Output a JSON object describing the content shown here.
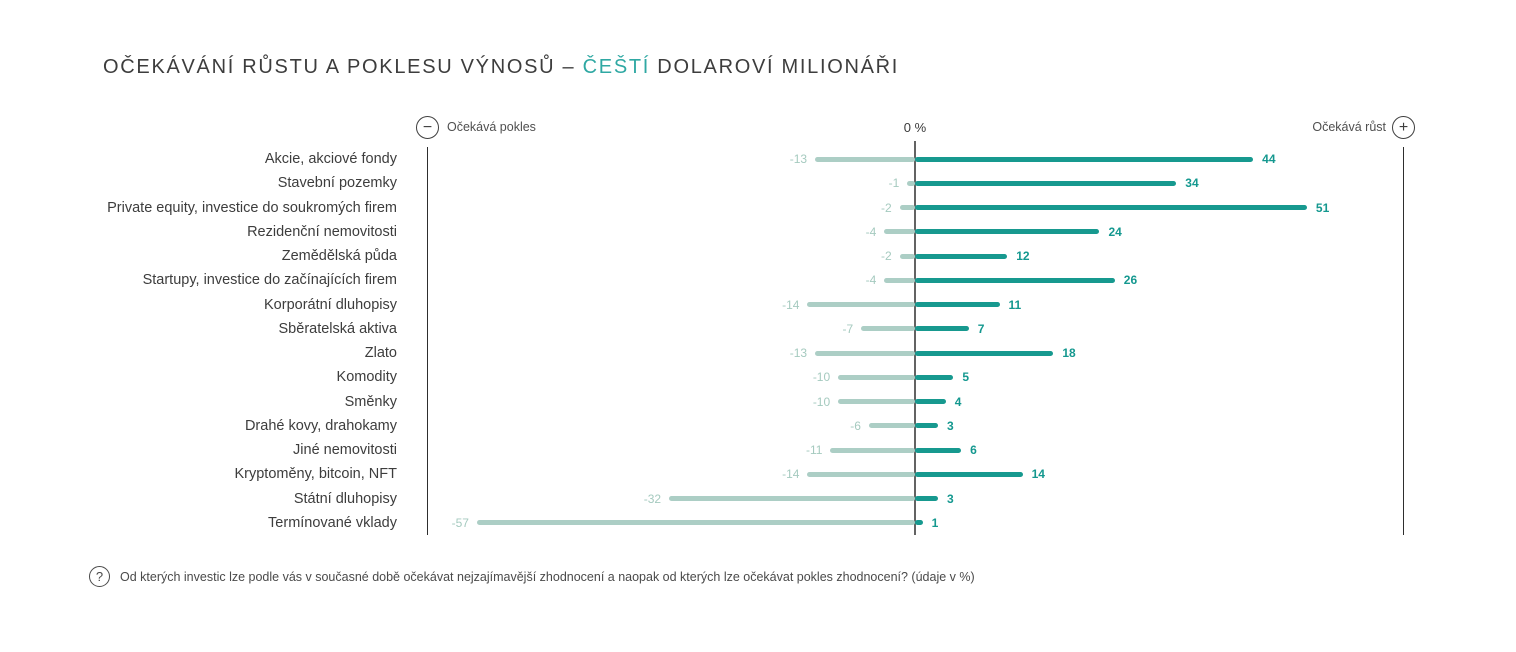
{
  "title": {
    "prefix": "OČEKÁVÁNÍ RŮSTU A POKLESU VÝNOSŮ – ",
    "highlight": "ČEŠTÍ",
    "suffix": " DOLAROVÍ MILIONÁŘI"
  },
  "axis": {
    "minus_glyph": "−",
    "plus_glyph": "+",
    "left_label": "Očekává pokles",
    "center_label": "0 %",
    "right_label": "Očekává růst"
  },
  "footer": {
    "icon_glyph": "?",
    "text": "Od kterých investic lze podle vás v současné době očekávat nejzajímavější zhodnocení a naopak od kterých lze očekávat pokles zhodnocení? (údaje v %)"
  },
  "colors": {
    "positive": "#17998F",
    "negative": "#ACCEC5",
    "negative_label": "#A5CABF",
    "positive_label": "#14988F",
    "title_highlight": "#2FA8A3",
    "text_dark": "#3D3D3D"
  },
  "chart_data": {
    "type": "bar",
    "orientation": "horizontal-diverging",
    "title": "Očekávání růstu a poklesu výnosů – čeští dolaroví milionáři",
    "value_unit": "%",
    "xlim": [
      -63.5,
      63.5
    ],
    "zero_label": "0 %",
    "categories": [
      "Akcie, akciové fondy",
      "Stavební pozemky",
      "Private equity, investice do soukromých firem",
      "Rezidenční nemovitosti",
      "Zemědělská půda",
      "Startupy, investice do začínajících firem",
      "Korporátní dluhopisy",
      "Sběratelská aktiva",
      "Zlato",
      "Komodity",
      "Směnky",
      "Drahé kovy, drahokamy",
      "Jiné nemovitosti",
      "Kryptoměny, bitcoin, NFT",
      "Státní dluhopisy",
      "Termínované vklady"
    ],
    "series": [
      {
        "name": "Očekává pokles",
        "values": [
          -13,
          -1,
          -2,
          -4,
          -2,
          -4,
          -14,
          -7,
          -13,
          -10,
          -10,
          -6,
          -11,
          -14,
          -32,
          -57
        ]
      },
      {
        "name": "Očekává růst",
        "values": [
          44,
          34,
          51,
          24,
          12,
          26,
          11,
          7,
          18,
          5,
          4,
          3,
          6,
          14,
          3,
          1
        ]
      }
    ]
  }
}
